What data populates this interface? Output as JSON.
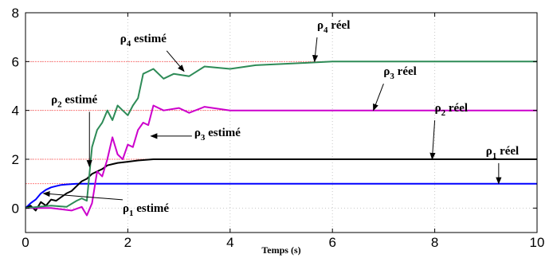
{
  "chart_data": {
    "type": "line",
    "title": "",
    "xlabel": "Temps (s)",
    "ylabel": "",
    "xlim": [
      0,
      10
    ],
    "ylim": [
      -1,
      8
    ],
    "xticks": [
      "0",
      "2",
      "4",
      "6",
      "8",
      "10"
    ],
    "yticks": [
      "0",
      "2",
      "4",
      "6",
      "8"
    ],
    "grid": true,
    "reference_lines": [
      {
        "y": 1,
        "color": "#ff8080"
      },
      {
        "y": 2,
        "color": "#ff8080"
      },
      {
        "y": 4,
        "color": "#ff8080"
      },
      {
        "y": 6,
        "color": "#ff8080"
      }
    ],
    "series": [
      {
        "color": "#0000ff",
        "x": [
          0,
          0.1,
          0.2,
          0.3,
          0.4,
          0.5,
          0.6,
          0.7,
          0.8,
          1.0,
          1.2,
          2,
          10
        ],
        "y": [
          0,
          0.2,
          0.35,
          0.6,
          0.75,
          0.85,
          0.9,
          0.95,
          0.97,
          1.0,
          1.0,
          1.0,
          1.0
        ]
      },
      {
        "color": "#000000",
        "x": [
          0,
          0.1,
          0.2,
          0.3,
          0.4,
          0.5,
          0.6,
          0.7,
          0.8,
          0.9,
          1.0,
          1.1,
          1.2,
          1.3,
          1.4,
          1.5,
          1.6,
          1.7,
          1.8,
          2.0,
          2.2,
          2.5,
          3,
          4,
          6,
          8,
          10
        ],
        "y": [
          0,
          0.1,
          -0.1,
          0.25,
          0.1,
          0.35,
          0.3,
          0.45,
          0.6,
          0.7,
          0.9,
          1.1,
          1.2,
          1.4,
          1.5,
          1.6,
          1.75,
          1.8,
          1.85,
          1.9,
          1.95,
          2.0,
          2.0,
          2.0,
          2.0,
          2.0,
          2.0
        ]
      },
      {
        "color": "#cc00cc",
        "x": [
          0,
          0.5,
          0.9,
          1.1,
          1.2,
          1.3,
          1.4,
          1.5,
          1.6,
          1.7,
          1.8,
          1.9,
          2.0,
          2.1,
          2.2,
          2.3,
          2.4,
          2.5,
          2.7,
          3.0,
          3.2,
          3.5,
          4,
          6,
          8,
          10
        ],
        "y": [
          0,
          0,
          -0.1,
          0.05,
          -0.3,
          0.2,
          1.5,
          1.3,
          2.0,
          2.9,
          2.2,
          2.0,
          2.6,
          2.5,
          3.2,
          3.5,
          3.4,
          4.2,
          4.0,
          4.1,
          3.9,
          4.15,
          4.0,
          4.0,
          4.0,
          4.0
        ]
      },
      {
        "color": "#2e8b57",
        "x": [
          0,
          0.5,
          0.8,
          1.0,
          1.1,
          1.2,
          1.3,
          1.4,
          1.5,
          1.6,
          1.7,
          1.8,
          1.9,
          2.0,
          2.1,
          2.2,
          2.3,
          2.4,
          2.5,
          2.7,
          2.9,
          3.2,
          3.5,
          4,
          4.5,
          5,
          5.5,
          6,
          7,
          8,
          10
        ],
        "y": [
          0,
          0.1,
          0.05,
          0.3,
          0.4,
          0.3,
          2.5,
          3.2,
          3.5,
          4.0,
          3.6,
          4.2,
          4.0,
          3.8,
          4.2,
          4.5,
          5.5,
          5.6,
          5.7,
          5.3,
          5.5,
          5.4,
          5.8,
          5.7,
          5.85,
          5.9,
          5.95,
          6.0,
          6.0,
          6.0,
          6.0
        ]
      }
    ],
    "annotations": [
      {
        "base": "ρ",
        "sub": "4",
        "text": " estimé",
        "x": 1.85,
        "y": 6.8,
        "arrow_to": [
          3.1,
          5.6
        ]
      },
      {
        "base": "ρ",
        "sub": "4",
        "text": " réel",
        "x": 5.7,
        "y": 7.35,
        "arrow_to": [
          5.65,
          6.0
        ]
      },
      {
        "base": "ρ",
        "sub": "2",
        "text": " estimé",
        "x": 0.5,
        "y": 4.3,
        "arrow_to": [
          1.25,
          1.7
        ]
      },
      {
        "base": "ρ",
        "sub": "3",
        "text": " réel",
        "x": 7.0,
        "y": 5.45,
        "arrow_to": [
          6.8,
          4.0
        ]
      },
      {
        "base": "ρ",
        "sub": "2",
        "text": " réel",
        "x": 8.0,
        "y": 3.95,
        "arrow_to": [
          7.95,
          2.0
        ]
      },
      {
        "base": "ρ",
        "sub": "1",
        "text": " réel",
        "x": 9.0,
        "y": 2.2,
        "arrow_to": [
          9.25,
          1.0
        ]
      },
      {
        "base": "ρ",
        "sub": "3",
        "text": " estimé",
        "x": 3.3,
        "y": 2.95,
        "arrow_to": [
          2.45,
          2.95
        ]
      },
      {
        "base": "ρ",
        "sub": "1",
        "text": " estimé",
        "x": 1.9,
        "y": -0.15,
        "arrow_to": [
          0.35,
          0.6
        ]
      }
    ]
  }
}
